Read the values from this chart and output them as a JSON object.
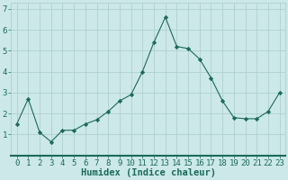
{
  "x": [
    0,
    1,
    2,
    3,
    4,
    5,
    6,
    7,
    8,
    9,
    10,
    11,
    12,
    13,
    14,
    15,
    16,
    17,
    18,
    19,
    20,
    21,
    22,
    23
  ],
  "y": [
    1.5,
    2.7,
    1.1,
    0.65,
    1.2,
    1.2,
    1.5,
    1.7,
    2.1,
    2.6,
    2.9,
    4.0,
    5.4,
    6.6,
    5.2,
    5.1,
    4.6,
    3.7,
    2.6,
    1.8,
    1.75,
    1.75,
    2.1,
    3.0
  ],
  "xlabel": "Humidex (Indice chaleur)",
  "line_color": "#1a6b5a",
  "marker_color": "#1a6b5a",
  "bg_color": "#cce8e8",
  "grid_color": "#aacccc",
  "xlim": [
    -0.5,
    23.5
  ],
  "ylim": [
    0.0,
    7.3
  ],
  "yticks": [
    1,
    2,
    3,
    4,
    5,
    6,
    7
  ],
  "xticks": [
    0,
    1,
    2,
    3,
    4,
    5,
    6,
    7,
    8,
    9,
    10,
    11,
    12,
    13,
    14,
    15,
    16,
    17,
    18,
    19,
    20,
    21,
    22,
    23
  ],
  "xlabel_fontsize": 7.5,
  "tick_fontsize": 6.5,
  "spine_color": "#1a6b5a",
  "bottom_bar_color": "#1a6b5a"
}
